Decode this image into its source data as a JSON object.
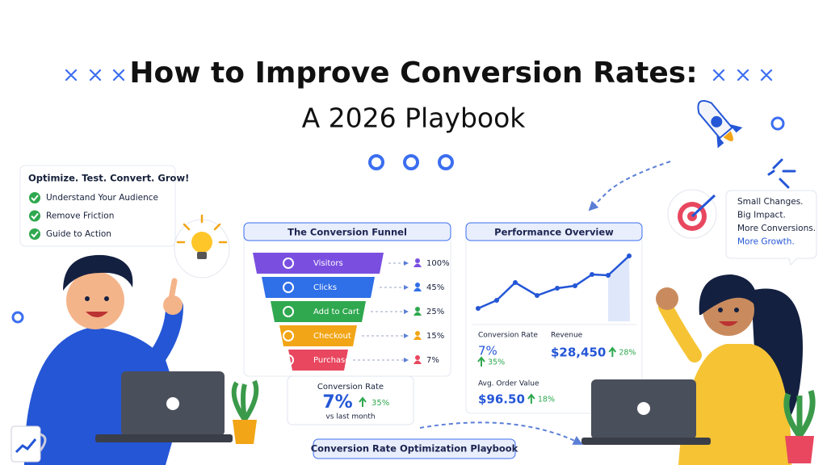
{
  "header": {
    "title": "How to Improve Conversion Rates:",
    "subtitle": "A 2026 Playbook"
  },
  "checklist": {
    "heading": "Optimize. Test. Convert. Grow!",
    "items": [
      "Understand Your Audience",
      "Remove Friction",
      "Guide to Action"
    ]
  },
  "funnel": {
    "title": "The Conversion Funnel",
    "stages": [
      {
        "label": "Visitors",
        "value": "100%",
        "color": "#7a4fe0"
      },
      {
        "label": "Clicks",
        "value": "45%",
        "color": "#2f6fe8"
      },
      {
        "label": "Add to Cart",
        "value": "25%",
        "color": "#2fa84f"
      },
      {
        "label": "Checkout",
        "value": "15%",
        "color": "#f2a516"
      },
      {
        "label": "Purchase",
        "value": "7%",
        "color": "#e8475f"
      }
    ],
    "summary": {
      "label": "Conversion Rate",
      "value": "7%",
      "change": "35%",
      "note": "vs last month"
    }
  },
  "performance": {
    "title": "Performance Overview",
    "metrics": [
      {
        "label": "Conversion Rate",
        "value": "7%",
        "change": "35%"
      },
      {
        "label": "Revenue",
        "value": "$28,450",
        "change": "28%"
      },
      {
        "label": "Avg. Order Value",
        "value": "$96.50",
        "change": "18%"
      }
    ]
  },
  "callout": {
    "lines": [
      "Small Changes.",
      "Big Impact.",
      "More Conversions.",
      "More Growth."
    ]
  },
  "footer": {
    "label": "Conversion Rate Optimization Playbook"
  }
}
